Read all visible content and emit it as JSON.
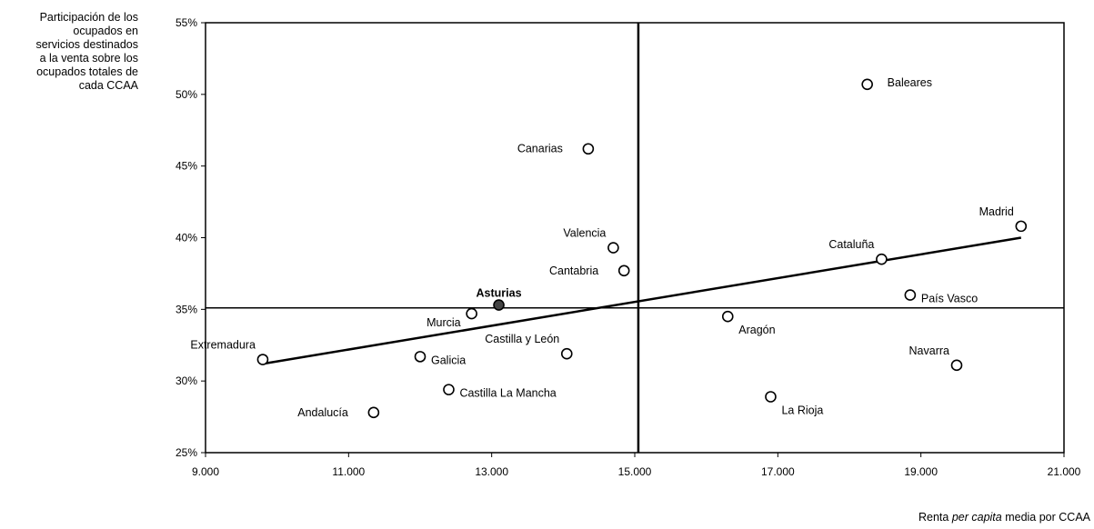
{
  "chart_data": {
    "type": "scatter",
    "ylabel_lines": [
      "Participación de los",
      "ocupados en",
      "servicios destinados",
      "a la venta sobre los",
      "ocupados totales de",
      "cada CCAA"
    ],
    "xlabel": {
      "before": "Renta ",
      "italic": "per capita",
      "after": " media por CCAA"
    },
    "xlim": [
      9000,
      21000
    ],
    "ylim": [
      25,
      55
    ],
    "x_ticks": [
      9000,
      11000,
      13000,
      15000,
      17000,
      19000,
      21000
    ],
    "x_tick_labels": [
      "9.000",
      "11.000",
      "13.000",
      "15.000",
      "17.000",
      "19.000",
      "21.000"
    ],
    "y_ticks": [
      25,
      30,
      35,
      40,
      45,
      50,
      55
    ],
    "y_tick_labels": [
      "25%",
      "30%",
      "35%",
      "40%",
      "45%",
      "50%",
      "55%"
    ],
    "reference_lines": {
      "x": 15050,
      "y": 35.1
    },
    "trendline": {
      "x": [
        9800,
        20400
      ],
      "y": [
        31.2,
        40.0
      ]
    },
    "grid": false,
    "points": [
      {
        "name": "Extremadura",
        "x": 9800,
        "y": 31.5,
        "label_pos": "above-left"
      },
      {
        "name": "Andalucía",
        "x": 11350,
        "y": 27.8,
        "label_pos": "left"
      },
      {
        "name": "Galicia",
        "x": 12000,
        "y": 31.7,
        "label_pos": "right"
      },
      {
        "name": "Castilla La Mancha",
        "x": 12400,
        "y": 29.4,
        "label_pos": "right"
      },
      {
        "name": "Murcia",
        "x": 12720,
        "y": 34.7,
        "label_pos": "below-left"
      },
      {
        "name": "Asturias",
        "x": 13100,
        "y": 35.3,
        "label_pos": "above",
        "highlight": true
      },
      {
        "name": "Castilla y León",
        "x": 14050,
        "y": 31.9,
        "label_pos": "above-left"
      },
      {
        "name": "Canarias",
        "x": 14350,
        "y": 46.2,
        "label_pos": "left"
      },
      {
        "name": "Valencia",
        "x": 14700,
        "y": 39.3,
        "label_pos": "above-left"
      },
      {
        "name": "Cantabria",
        "x": 14850,
        "y": 37.7,
        "label_pos": "left"
      },
      {
        "name": "Aragón",
        "x": 16300,
        "y": 34.5,
        "label_pos": "below-right"
      },
      {
        "name": "La Rioja",
        "x": 16900,
        "y": 28.9,
        "label_pos": "below-right"
      },
      {
        "name": "Baleares",
        "x": 18250,
        "y": 50.7,
        "label_pos": "above-right"
      },
      {
        "name": "Cataluña",
        "x": 18450,
        "y": 38.5,
        "label_pos": "above-left"
      },
      {
        "name": "País Vasco",
        "x": 18850,
        "y": 36.0,
        "label_pos": "right"
      },
      {
        "name": "Navarra",
        "x": 19500,
        "y": 31.1,
        "label_pos": "above-left"
      },
      {
        "name": "Madrid",
        "x": 20400,
        "y": 40.8,
        "label_pos": "above-left"
      }
    ]
  }
}
